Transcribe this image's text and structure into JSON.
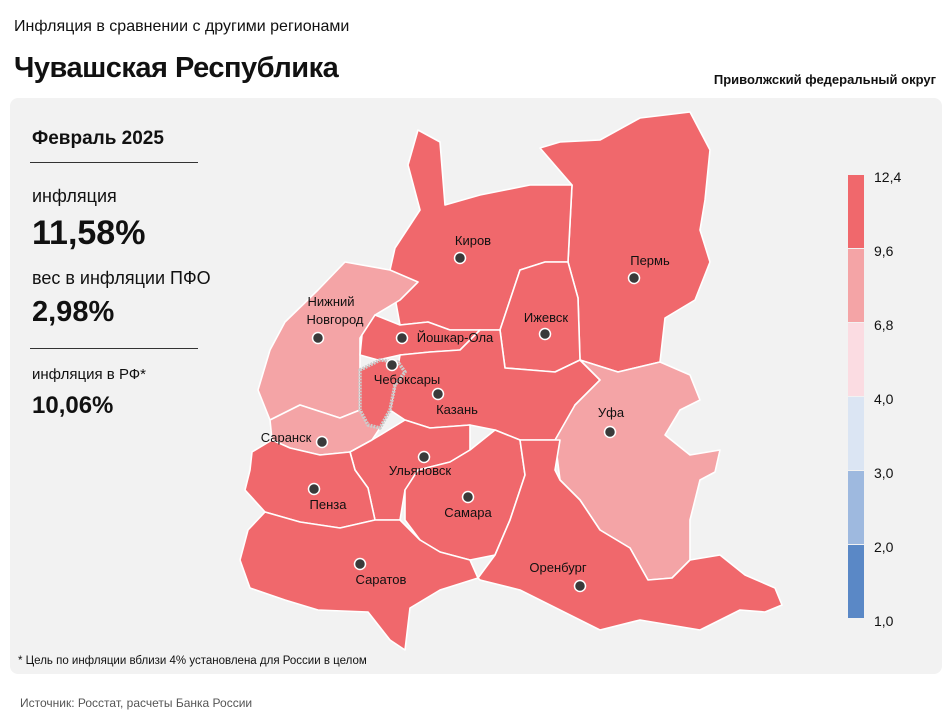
{
  "header": {
    "subtitle": "Инфляция в сравнении с другими регионами",
    "title": "Чувашская Республика",
    "district": "Приволжский федеральный округ"
  },
  "stats": {
    "period": "Февраль 2025",
    "inflation_label": "инфляция",
    "inflation_value": "11,58%",
    "weight_label": "вес в инфляции  ПФО",
    "weight_value": "2,98%",
    "rf_label": "инфляция  в РФ*",
    "rf_value": "10,06%"
  },
  "legend": {
    "ticks": [
      "12,4",
      "9,6",
      "6,8",
      "4,0",
      "3,0",
      "2,0",
      "1,0"
    ],
    "colors": [
      "#f0686c",
      "#f4a4a6",
      "#fbdce2",
      "#dbe5f3",
      "#9eb9df",
      "#5a88c6"
    ]
  },
  "map": {
    "fill_high": "#f0686c",
    "fill_mid": "#f4a4a6",
    "highlight_region": "Чебоксары",
    "cities": [
      {
        "name": "Киров"
      },
      {
        "name": "Пермь"
      },
      {
        "name": "Нижний"
      },
      {
        "name": "Новгород"
      },
      {
        "name": "Йошкар-Ола"
      },
      {
        "name": "Ижевск"
      },
      {
        "name": "Чебоксары"
      },
      {
        "name": "Казань"
      },
      {
        "name": "Уфа"
      },
      {
        "name": "Саранск"
      },
      {
        "name": "Ульяновск"
      },
      {
        "name": "Пенза"
      },
      {
        "name": "Самара"
      },
      {
        "name": "Саратов"
      },
      {
        "name": "Оренбург"
      }
    ]
  },
  "footnote": "* Цель по инфляции  вблизи 4% установлена для России в целом",
  "source": "Источник: Росстат, расчеты Банка России"
}
